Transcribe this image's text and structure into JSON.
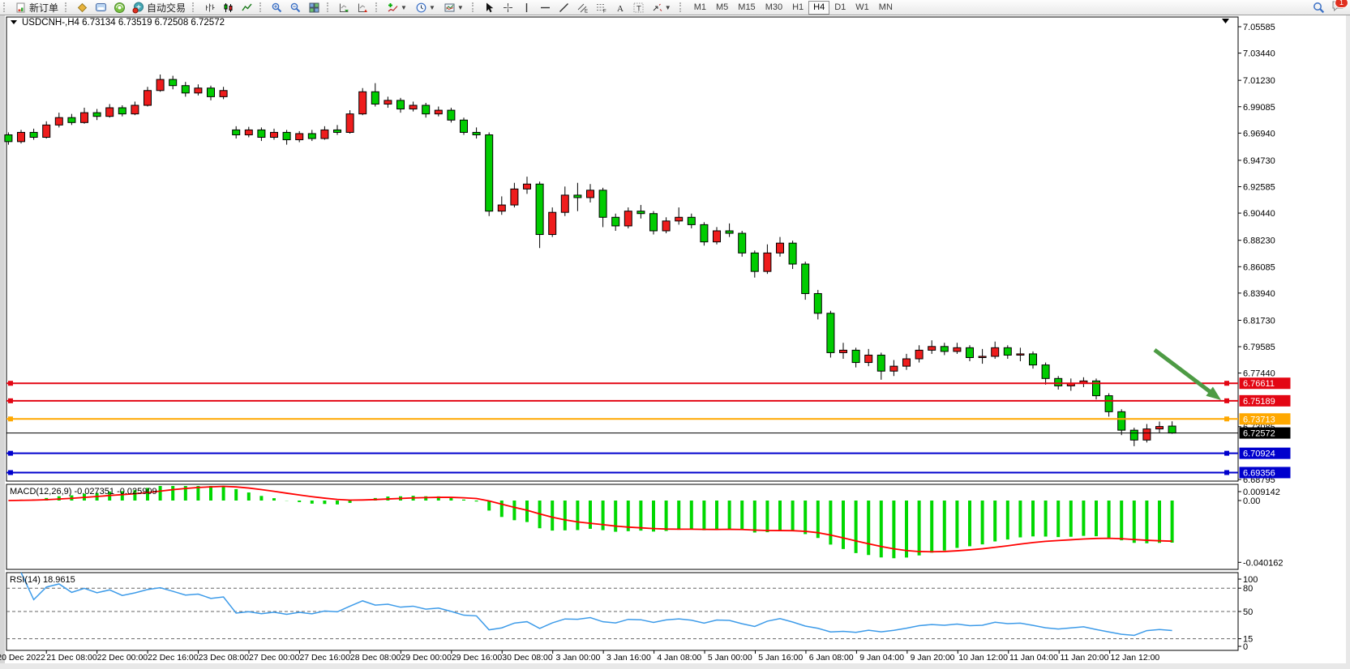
{
  "toolbar": {
    "new_order_label": "新订单",
    "autotrade_label": "自动交易",
    "timeframes": [
      "M1",
      "M5",
      "M15",
      "M30",
      "H1",
      "H4",
      "D1",
      "W1",
      "MN"
    ],
    "active_timeframe": "H4",
    "notification_count": "1"
  },
  "chart": {
    "title_symbol": "USDCNH-,H4",
    "title_ohlc": "6.73134 6.73519 6.72508 6.72572",
    "macd_label": "MACD(12,26,9) -0.027351 -0.025909",
    "rsi_label": "RSI(14) 18.9615"
  },
  "chart_data": {
    "type": "candlestick",
    "symbol": "USDCNH-",
    "timeframe": "H4",
    "ohlc_display": {
      "open": "6.73134",
      "high": "6.73519",
      "low": "6.72508",
      "close": "6.72572"
    },
    "price_axis_ticks": [
      "7.05585",
      "7.03440",
      "7.01230",
      "6.99085",
      "6.96940",
      "6.94730",
      "6.92585",
      "6.90440",
      "6.88230",
      "6.86085",
      "6.83940",
      "6.81730",
      "6.79585",
      "6.77440",
      "6.73085",
      "6.68795"
    ],
    "time_axis_labels": [
      "20 Dec 2022",
      "21 Dec 08:00",
      "22 Dec 00:00",
      "22 Dec 16:00",
      "23 Dec 08:00",
      "27 Dec 00:00",
      "27 Dec 16:00",
      "28 Dec 08:00",
      "29 Dec 00:00",
      "29 Dec 16:00",
      "30 Dec 08:00",
      "3 Jan 00:00",
      "3 Jan 16:00",
      "4 Jan 08:00",
      "5 Jan 00:00",
      "5 Jan 16:00",
      "6 Jan 08:00",
      "9 Jan 04:00",
      "9 Jan 20:00",
      "10 Jan 12:00",
      "11 Jan 04:00",
      "11 Jan 20:00",
      "12 Jan 12:00"
    ],
    "candles": [
      [
        6.968,
        6.97,
        6.96,
        6.9625
      ],
      [
        6.9625,
        6.972,
        6.961,
        6.97
      ],
      [
        6.97,
        6.973,
        6.964,
        6.966
      ],
      [
        6.966,
        6.979,
        6.965,
        6.976
      ],
      [
        6.976,
        6.986,
        6.974,
        6.982
      ],
      [
        6.982,
        6.985,
        6.976,
        6.978
      ],
      [
        6.978,
        6.99,
        6.977,
        6.986
      ],
      [
        6.986,
        6.989,
        6.98,
        6.983
      ],
      [
        6.983,
        6.993,
        6.982,
        6.99
      ],
      [
        6.99,
        6.992,
        6.983,
        6.985
      ],
      [
        6.985,
        6.995,
        6.984,
        6.992
      ],
      [
        6.992,
        7.007,
        6.991,
        7.004
      ],
      [
        7.004,
        7.017,
        7.003,
        7.013
      ],
      [
        7.013,
        7.016,
        7.005,
        7.008
      ],
      [
        7.008,
        7.011,
        6.999,
        7.002
      ],
      [
        7.002,
        7.009,
        7.0,
        7.006
      ],
      [
        7.006,
        7.008,
        6.996,
        6.999
      ],
      [
        6.999,
        7.007,
        6.997,
        7.004
      ],
      [
        6.972,
        6.975,
        6.965,
        6.968
      ],
      [
        6.968,
        6.9745,
        6.966,
        6.972
      ],
      [
        6.972,
        6.974,
        6.963,
        6.966
      ],
      [
        6.966,
        6.973,
        6.964,
        6.97
      ],
      [
        6.97,
        6.972,
        6.96,
        6.964
      ],
      [
        6.964,
        6.971,
        6.962,
        6.969
      ],
      [
        6.969,
        6.972,
        6.963,
        6.965
      ],
      [
        6.965,
        6.975,
        6.964,
        6.972
      ],
      [
        6.972,
        6.976,
        6.968,
        6.97
      ],
      [
        6.97,
        6.988,
        6.969,
        6.985
      ],
      [
        6.985,
        7.006,
        6.984,
        7.003
      ],
      [
        7.003,
        7.01,
        6.991,
        6.993
      ],
      [
        6.993,
        6.999,
        6.99,
        6.996
      ],
      [
        6.996,
        6.998,
        6.986,
        6.989
      ],
      [
        6.989,
        6.995,
        6.987,
        6.992
      ],
      [
        6.992,
        6.994,
        6.982,
        6.985
      ],
      [
        6.985,
        6.991,
        6.983,
        6.988
      ],
      [
        6.988,
        6.99,
        6.978,
        6.98
      ],
      [
        6.98,
        6.982,
        6.968,
        6.97
      ],
      [
        6.97,
        6.974,
        6.965,
        6.968
      ],
      [
        6.968,
        6.97,
        6.902,
        6.906
      ],
      [
        6.906,
        6.918,
        6.903,
        6.911
      ],
      [
        6.911,
        6.929,
        6.909,
        6.924
      ],
      [
        6.924,
        6.934,
        6.92,
        6.928
      ],
      [
        6.928,
        6.93,
        6.876,
        6.887
      ],
      [
        6.887,
        6.909,
        6.885,
        6.905
      ],
      [
        6.905,
        6.926,
        6.902,
        6.919
      ],
      [
        6.919,
        6.929,
        6.906,
        6.917
      ],
      [
        6.917,
        6.928,
        6.913,
        6.923
      ],
      [
        6.923,
        6.925,
        6.893,
        6.901
      ],
      [
        6.901,
        6.904,
        6.89,
        6.894
      ],
      [
        6.894,
        6.909,
        6.892,
        6.906
      ],
      [
        6.906,
        6.911,
        6.9,
        6.904
      ],
      [
        6.904,
        6.906,
        6.887,
        6.89
      ],
      [
        6.89,
        6.901,
        6.888,
        6.898
      ],
      [
        6.898,
        6.909,
        6.895,
        6.901
      ],
      [
        6.901,
        6.904,
        6.892,
        6.895
      ],
      [
        6.895,
        6.897,
        6.878,
        6.881
      ],
      [
        6.881,
        6.893,
        6.879,
        6.89
      ],
      [
        6.89,
        6.896,
        6.885,
        6.888
      ],
      [
        6.888,
        6.89,
        6.869,
        6.872
      ],
      [
        6.872,
        6.874,
        6.852,
        6.857
      ],
      [
        6.857,
        6.879,
        6.855,
        6.872
      ],
      [
        6.872,
        6.885,
        6.869,
        6.88
      ],
      [
        6.88,
        6.882,
        6.859,
        6.863
      ],
      [
        6.863,
        6.865,
        6.834,
        6.839
      ],
      [
        6.839,
        6.842,
        6.818,
        6.823
      ],
      [
        6.823,
        6.825,
        6.787,
        6.791
      ],
      [
        6.791,
        6.799,
        6.786,
        6.793
      ],
      [
        6.793,
        6.795,
        6.779,
        6.783
      ],
      [
        6.783,
        6.794,
        6.78,
        6.789
      ],
      [
        6.789,
        6.791,
        6.769,
        6.776
      ],
      [
        6.776,
        6.785,
        6.772,
        6.78
      ],
      [
        6.78,
        6.79,
        6.777,
        6.786
      ],
      [
        6.786,
        6.797,
        6.783,
        6.793
      ],
      [
        6.793,
        6.801,
        6.79,
        6.796
      ],
      [
        6.796,
        6.799,
        6.789,
        6.792
      ],
      [
        6.792,
        6.799,
        6.79,
        6.795
      ],
      [
        6.795,
        6.797,
        6.784,
        6.787
      ],
      [
        6.787,
        6.794,
        6.782,
        6.788
      ],
      [
        6.788,
        6.8,
        6.786,
        6.795
      ],
      [
        6.795,
        6.797,
        6.786,
        6.789
      ],
      [
        6.789,
        6.795,
        6.784,
        6.79
      ],
      [
        6.79,
        6.792,
        6.778,
        6.781
      ],
      [
        6.781,
        6.783,
        6.765,
        6.77
      ],
      [
        6.77,
        6.772,
        6.761,
        6.764
      ],
      [
        6.764,
        6.77,
        6.76,
        6.766
      ],
      [
        6.766,
        6.771,
        6.763,
        6.768
      ],
      [
        6.768,
        6.77,
        6.753,
        6.756
      ],
      [
        6.756,
        6.758,
        6.739,
        6.743
      ],
      [
        6.743,
        6.745,
        6.724,
        6.728
      ],
      [
        6.728,
        6.73,
        6.715,
        6.72
      ],
      [
        6.72,
        6.733,
        6.718,
        6.729
      ],
      [
        6.729,
        6.735,
        6.726,
        6.731
      ],
      [
        6.73134,
        6.73519,
        6.72508,
        6.72572
      ]
    ],
    "hlines": [
      {
        "price": 6.76611,
        "label": "6.76611",
        "color": "#e30613"
      },
      {
        "price": 6.75189,
        "label": "6.75189",
        "color": "#e30613"
      },
      {
        "price": 6.73713,
        "label": "6.73713",
        "color": "#ffa800"
      },
      {
        "price": 6.70924,
        "label": "6.70924",
        "color": "#0000cd"
      },
      {
        "price": 6.69356,
        "label": "6.69356",
        "color": "#0000cd"
      }
    ],
    "bid": {
      "price": 6.72572,
      "label": "6.72572",
      "color": "#000000"
    },
    "macd": {
      "label": "MACD(12,26,9) -0.027351 -0.025909",
      "params": [
        12,
        26,
        9
      ],
      "value": -0.027351,
      "signal_value": -0.025909,
      "axis_ticks": [
        "0.009142",
        "0.00",
        "-0.040162"
      ]
    },
    "rsi": {
      "label": "RSI(14) 18.9615",
      "period": 14,
      "value": 18.9615,
      "axis_ticks": [
        "100",
        "80",
        "50",
        "15",
        "0"
      ],
      "levels": [
        80,
        50,
        15
      ]
    },
    "annotation_arrow": {
      "from": [
        1424,
        432
      ],
      "to": [
        1506,
        494
      ],
      "color": "#4d9b44"
    },
    "colors": {
      "up": "#ee1c1c",
      "down": "#00cc00",
      "macd_hist": "#00d800",
      "macd_signal": "#ff0000",
      "rsi_line": "#3d9be9"
    }
  }
}
